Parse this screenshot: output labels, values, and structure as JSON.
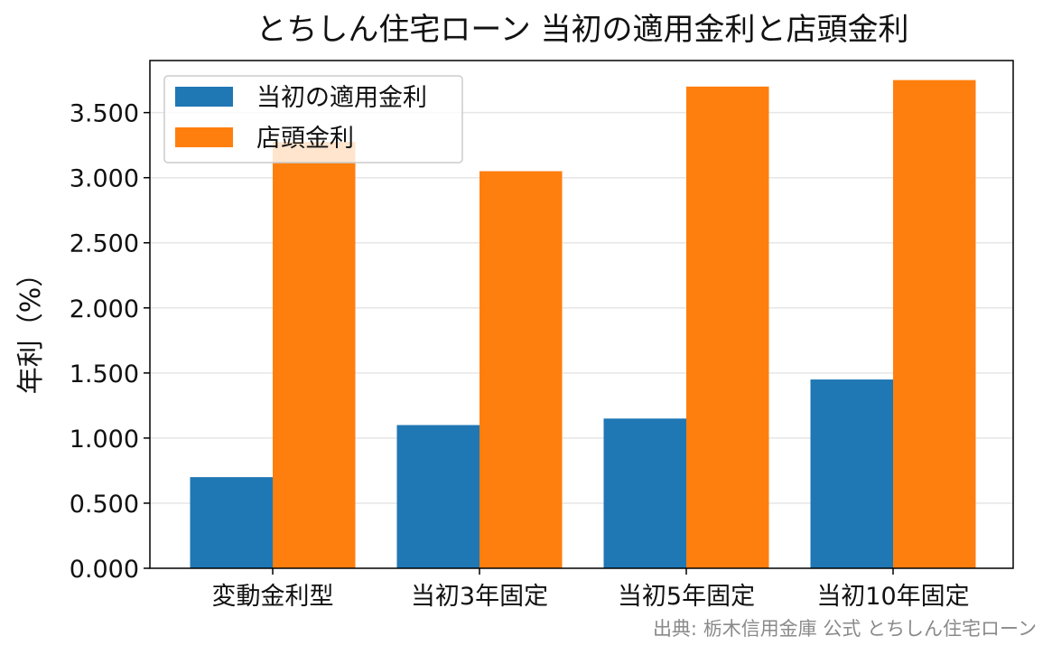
{
  "chart_data": {
    "type": "bar",
    "title": "とちしん住宅ローン 当初の適用金利と店頭金利",
    "ylabel": "年利（%）",
    "xlabel": "",
    "categories": [
      "変動金利型",
      "当初3年固定",
      "当初5年固定",
      "当初10年固定"
    ],
    "series": [
      {
        "name": "当初の適用金利",
        "color": "#1f77b4",
        "values": [
          0.7,
          1.1,
          1.15,
          1.45
        ]
      },
      {
        "name": "店頭金利",
        "color": "#ff7f0e",
        "values": [
          3.275,
          3.05,
          3.7,
          3.75
        ]
      }
    ],
    "ylim": [
      0,
      3.9
    ],
    "yticks": [
      "0.000",
      "0.500",
      "1.000",
      "1.500",
      "2.000",
      "2.500",
      "3.000",
      "3.500"
    ],
    "ytick_values": [
      0,
      0.5,
      1.0,
      1.5,
      2.0,
      2.5,
      3.0,
      3.5
    ],
    "grid": "horizontal",
    "legend": "top-left"
  },
  "source": "出典: 栃木信用金庫 公式 とちしん住宅ローン"
}
